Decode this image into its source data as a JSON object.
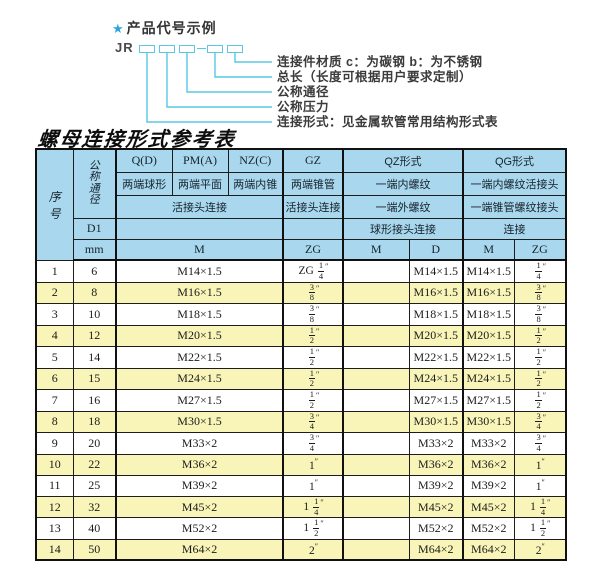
{
  "diagram": {
    "star_icon": "★",
    "heading": "产品代号示例",
    "code_prefix": "JR",
    "callouts": [
      "连接件材质  c：为碳钢  b：为不锈钢",
      "总长（长度可根据用户要求定制）",
      "公称通径",
      "公称压力",
      "连接形式：见金属软管常用结构形式表"
    ]
  },
  "table_title": "螺母连接形式参考表",
  "table": {
    "header": {
      "seq": "序号",
      "dn": "公称通径",
      "d1": "D1",
      "mm": "mm",
      "row1": [
        "Q(D)",
        "PM(A)",
        "NZ(C)",
        "GZ",
        "QZ形式",
        "QG形式"
      ],
      "row2": [
        "两端球形",
        "两端平面",
        "两端内锥",
        "两端锥管",
        "一端内螺纹",
        "一端内螺纹活接头"
      ],
      "row3": [
        "活接头连接",
        "活接头连接",
        "一端外螺纹",
        "一端锥管螺纹接头"
      ],
      "row4": [
        "",
        "",
        "球形接头连接",
        "连接"
      ],
      "row5": [
        "M",
        "ZG",
        "M",
        "D",
        "M",
        "ZG"
      ]
    },
    "rows": [
      [
        "1",
        "6",
        "M14×1.5",
        "ZG 1/4\"",
        "",
        "M14×1.5",
        "M14×1.5",
        "1/4\""
      ],
      [
        "2",
        "8",
        "M16×1.5",
        "3/8\"",
        "",
        "M16×1.5",
        "M16×1.5",
        "3/8\""
      ],
      [
        "3",
        "10",
        "M18×1.5",
        "3/8\"",
        "",
        "M18×1.5",
        "M18×1.5",
        "3/8\""
      ],
      [
        "4",
        "12",
        "M20×1.5",
        "1/2\"",
        "",
        "M20×1.5",
        "M20×1.5",
        "1/2\""
      ],
      [
        "5",
        "14",
        "M22×1.5",
        "1/2\"",
        "",
        "M22×1.5",
        "M22×1.5",
        "1/2\""
      ],
      [
        "6",
        "15",
        "M24×1.5",
        "1/2\"",
        "",
        "M24×1.5",
        "M24×1.5",
        "1/2\""
      ],
      [
        "7",
        "16",
        "M27×1.5",
        "1/2\"",
        "",
        "M27×1.5",
        "M27×1.5",
        "1/2\""
      ],
      [
        "8",
        "18",
        "M30×1.5",
        "3/4\"",
        "",
        "M30×1.5",
        "M30×1.5",
        "3/4\""
      ],
      [
        "9",
        "20",
        "M33×2",
        "3/4\"",
        "",
        "M33×2",
        "M33×2",
        "3/4\""
      ],
      [
        "10",
        "22",
        "M36×2",
        "1\"",
        "",
        "M36×2",
        "M36×2",
        "1\""
      ],
      [
        "11",
        "25",
        "M39×2",
        "1\"",
        "",
        "M39×2",
        "M39×2",
        "1\""
      ],
      [
        "12",
        "32",
        "M45×2",
        "1 1/4\"",
        "",
        "M45×2",
        "M45×2",
        "1 1/4\""
      ],
      [
        "13",
        "40",
        "M52×2",
        "1 1/2\"",
        "",
        "M52×2",
        "M52×2",
        "1 1/2\""
      ],
      [
        "14",
        "50",
        "M64×2",
        "2\"",
        "",
        "M64×2",
        "M64×2",
        "2\""
      ]
    ]
  },
  "colors": {
    "header_bg": "#a9d8ee",
    "alt_row_bg": "#f9f5b8",
    "diagram_line": "#58c8e5",
    "star_blue": "#2aa7dc"
  }
}
